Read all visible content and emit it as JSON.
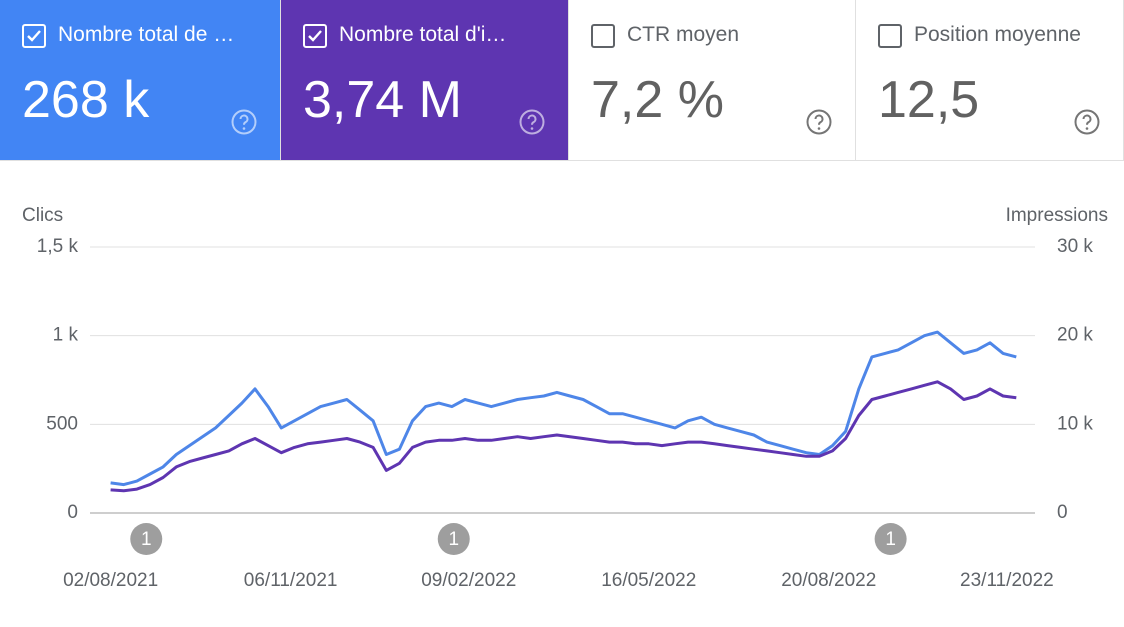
{
  "cards": [
    {
      "label": "Nombre total de …",
      "value": "268 k",
      "checked": true,
      "color": "#4285f4"
    },
    {
      "label": "Nombre total d'i…",
      "value": "3,74 M",
      "checked": true,
      "color": "#5e35b1"
    },
    {
      "label": "CTR moyen",
      "value": "7,2 %",
      "checked": false,
      "color": "#ffffff"
    },
    {
      "label": "Position moyenne",
      "value": "12,5",
      "checked": false,
      "color": "#ffffff"
    }
  ],
  "chart_data": {
    "type": "line",
    "y_label": "Clics",
    "y2_label": "Impressions",
    "xlim": [
      "22/07/2021",
      "08/12/2022"
    ],
    "xticks": [
      "02/08/2021",
      "06/11/2021",
      "09/02/2022",
      "16/05/2022",
      "20/08/2022",
      "23/11/2022"
    ],
    "ylim": [
      0,
      1500
    ],
    "yticks": [
      0,
      500,
      {
        "value": 1000,
        "label": "1 k"
      },
      {
        "value": 1500,
        "label": "1,5 k"
      }
    ],
    "y2lim": [
      0,
      30000
    ],
    "y2ticks": [
      0,
      {
        "value": 10000,
        "label": "10 k"
      },
      {
        "value": 20000,
        "label": "20 k"
      },
      {
        "value": 30000,
        "label": "30 k"
      }
    ],
    "grid": true,
    "x": [
      "02/08/2021",
      "09/08/2021",
      "16/08/2021",
      "23/08/2021",
      "30/08/2021",
      "06/09/2021",
      "13/09/2021",
      "20/09/2021",
      "27/09/2021",
      "04/10/2021",
      "11/10/2021",
      "18/10/2021",
      "25/10/2021",
      "01/11/2021",
      "08/11/2021",
      "15/11/2021",
      "22/11/2021",
      "29/11/2021",
      "06/12/2021",
      "13/12/2021",
      "20/12/2021",
      "27/12/2021",
      "03/01/2022",
      "10/01/2022",
      "17/01/2022",
      "24/01/2022",
      "31/01/2022",
      "07/02/2022",
      "14/02/2022",
      "21/02/2022",
      "28/02/2022",
      "07/03/2022",
      "14/03/2022",
      "21/03/2022",
      "28/03/2022",
      "04/04/2022",
      "11/04/2022",
      "18/04/2022",
      "25/04/2022",
      "02/05/2022",
      "09/05/2022",
      "16/05/2022",
      "23/05/2022",
      "30/05/2022",
      "06/06/2022",
      "13/06/2022",
      "20/06/2022",
      "27/06/2022",
      "04/07/2022",
      "11/07/2022",
      "18/07/2022",
      "25/07/2022",
      "01/08/2022",
      "08/08/2022",
      "15/08/2022",
      "22/08/2022",
      "29/08/2022",
      "05/09/2022",
      "12/09/2022",
      "19/09/2022",
      "26/09/2022",
      "03/10/2022",
      "10/10/2022",
      "17/10/2022",
      "24/10/2022",
      "31/10/2022",
      "07/11/2022",
      "14/11/2022",
      "21/11/2022",
      "28/11/2022"
    ],
    "series": [
      {
        "name": "Clics",
        "color": "#4e86e8",
        "values": [
          170,
          160,
          180,
          220,
          260,
          330,
          380,
          430,
          480,
          550,
          620,
          700,
          600,
          480,
          520,
          560,
          600,
          620,
          640,
          580,
          520,
          330,
          360,
          520,
          600,
          620,
          600,
          640,
          620,
          600,
          620,
          640,
          650,
          660,
          680,
          660,
          640,
          600,
          560,
          560,
          540,
          520,
          500,
          480,
          520,
          540,
          500,
          480,
          460,
          440,
          400,
          380,
          360,
          340,
          330,
          380,
          460,
          700,
          880,
          900,
          920,
          960,
          1000,
          1020,
          960,
          900,
          920,
          960,
          900,
          880
        ]
      },
      {
        "name": "Impressions",
        "color": "#5e35b1",
        "axis": "y2",
        "values": [
          2600,
          2500,
          2700,
          3200,
          4000,
          5200,
          5800,
          6200,
          6600,
          7000,
          7800,
          8400,
          7600,
          6800,
          7400,
          7800,
          8000,
          8200,
          8400,
          8000,
          7400,
          4800,
          5600,
          7400,
          8000,
          8200,
          8200,
          8400,
          8200,
          8200,
          8400,
          8600,
          8400,
          8600,
          8800,
          8600,
          8400,
          8200,
          8000,
          8000,
          7800,
          7800,
          7600,
          7800,
          8000,
          8000,
          7800,
          7600,
          7400,
          7200,
          7000,
          6800,
          6600,
          6400,
          6400,
          7000,
          8400,
          11000,
          12800,
          13200,
          13600,
          14000,
          14400,
          14800,
          14000,
          12800,
          13200,
          14000,
          13200,
          13000
        ]
      }
    ],
    "annotations": [
      {
        "x": "21/08/2021",
        "label": "1"
      },
      {
        "x": "01/02/2022",
        "label": "1"
      },
      {
        "x": "22/09/2022",
        "label": "1"
      }
    ]
  }
}
